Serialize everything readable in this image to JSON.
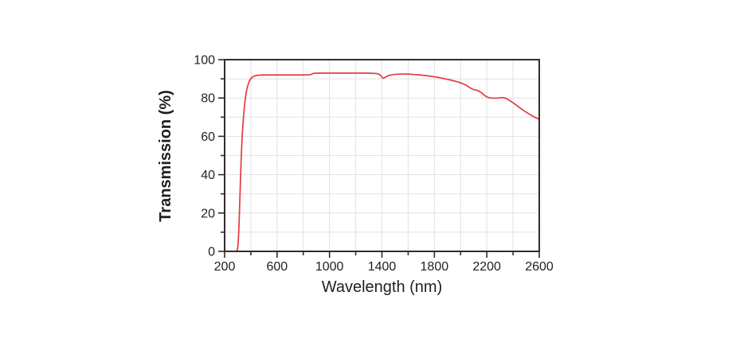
{
  "chart_data": {
    "type": "line",
    "title": "",
    "xlabel": "Wavelength (nm)",
    "ylabel": "Transmission (%)",
    "xlim": [
      200,
      2600
    ],
    "ylim": [
      0,
      100
    ],
    "x_major_ticks": [
      200,
      600,
      1000,
      1400,
      1800,
      2200,
      2600
    ],
    "x_minor_ticks": [
      400,
      800,
      1200,
      1600,
      2000,
      2400
    ],
    "y_major_ticks": [
      0,
      20,
      40,
      60,
      80,
      100
    ],
    "y_minor_ticks": [
      10,
      30,
      50,
      70,
      90
    ],
    "grid": {
      "show": true,
      "x_step": 200,
      "y_step": 10,
      "color": "#e1e1e1"
    },
    "legend": {
      "show": false
    },
    "style": {
      "frame_color": "#362a2a",
      "frame_width": 2,
      "tick_color": "#362a2a",
      "text_color": "#262020",
      "background": "#ffffff",
      "line_width": 1.7,
      "major_tick_len": 7,
      "minor_tick_len": 4
    },
    "series": [
      {
        "name": "Transmission",
        "color": "#e23b42",
        "points": [
          [
            200,
            0
          ],
          [
            260,
            0
          ],
          [
            285,
            0
          ],
          [
            292,
            0.2
          ],
          [
            297,
            0.8
          ],
          [
            302,
            3
          ],
          [
            307,
            9
          ],
          [
            312,
            18
          ],
          [
            317,
            29
          ],
          [
            322,
            40
          ],
          [
            328,
            51
          ],
          [
            334,
            60
          ],
          [
            340,
            66.5
          ],
          [
            347,
            72.5
          ],
          [
            354,
            77.5
          ],
          [
            362,
            81.5
          ],
          [
            370,
            84.8
          ],
          [
            380,
            87.2
          ],
          [
            390,
            89
          ],
          [
            401,
            90.2
          ],
          [
            412,
            90.9
          ],
          [
            425,
            91.4
          ],
          [
            440,
            91.7
          ],
          [
            460,
            91.9
          ],
          [
            490,
            92
          ],
          [
            530,
            92
          ],
          [
            570,
            92
          ],
          [
            610,
            92
          ],
          [
            650,
            92
          ],
          [
            690,
            92
          ],
          [
            730,
            92
          ],
          [
            770,
            92
          ],
          [
            810,
            92
          ],
          [
            840,
            92.1
          ],
          [
            856,
            92.2
          ],
          [
            866,
            92.5
          ],
          [
            876,
            92.8
          ],
          [
            890,
            92.9
          ],
          [
            930,
            93
          ],
          [
            980,
            93
          ],
          [
            1030,
            93
          ],
          [
            1080,
            93
          ],
          [
            1130,
            93
          ],
          [
            1180,
            93
          ],
          [
            1230,
            93
          ],
          [
            1280,
            93
          ],
          [
            1320,
            92.9
          ],
          [
            1355,
            92.8
          ],
          [
            1378,
            92.4
          ],
          [
            1392,
            91.6
          ],
          [
            1402,
            90.7
          ],
          [
            1410,
            90.3
          ],
          [
            1418,
            90.5
          ],
          [
            1430,
            91
          ],
          [
            1447,
            91.6
          ],
          [
            1468,
            92
          ],
          [
            1492,
            92.3
          ],
          [
            1520,
            92.4
          ],
          [
            1552,
            92.5
          ],
          [
            1585,
            92.5
          ],
          [
            1620,
            92.4
          ],
          [
            1658,
            92.2
          ],
          [
            1695,
            92
          ],
          [
            1732,
            91.7
          ],
          [
            1768,
            91.4
          ],
          [
            1805,
            91
          ],
          [
            1840,
            90.6
          ],
          [
            1875,
            90.1
          ],
          [
            1910,
            89.6
          ],
          [
            1945,
            89
          ],
          [
            1978,
            88.4
          ],
          [
            2008,
            87.7
          ],
          [
            2038,
            86.8
          ],
          [
            2062,
            85.8
          ],
          [
            2082,
            84.9
          ],
          [
            2100,
            84.4
          ],
          [
            2120,
            84.1
          ],
          [
            2140,
            83.6
          ],
          [
            2160,
            82.7
          ],
          [
            2180,
            81.5
          ],
          [
            2200,
            80.6
          ],
          [
            2220,
            80.1
          ],
          [
            2245,
            79.9
          ],
          [
            2272,
            79.9
          ],
          [
            2298,
            80.1
          ],
          [
            2322,
            80.2
          ],
          [
            2342,
            79.9
          ],
          [
            2365,
            79.1
          ],
          [
            2390,
            78
          ],
          [
            2415,
            76.8
          ],
          [
            2442,
            75.4
          ],
          [
            2470,
            74
          ],
          [
            2498,
            72.7
          ],
          [
            2526,
            71.5
          ],
          [
            2554,
            70.4
          ],
          [
            2580,
            69.5
          ],
          [
            2600,
            68.9
          ]
        ]
      }
    ]
  }
}
